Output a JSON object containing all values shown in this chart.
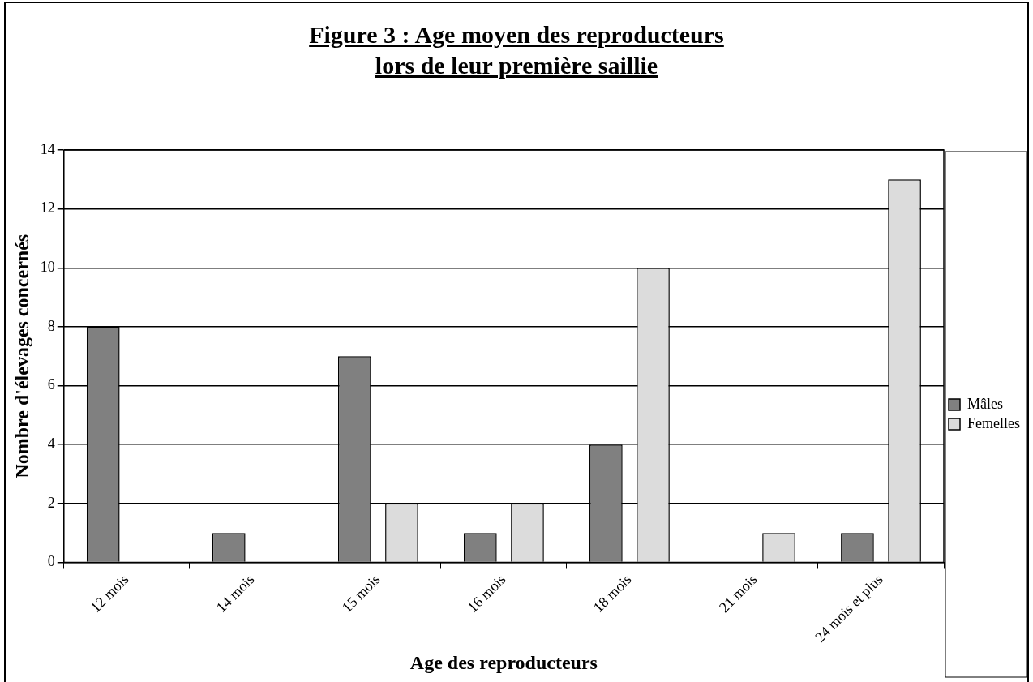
{
  "chart_data": {
    "type": "bar",
    "title": "Figure 3 : Age moyen des reproducteurs\nlors de leur première saillie",
    "xlabel": "Age des reproducteurs",
    "ylabel": "Nombre d'élevages concernés",
    "categories": [
      "12 mois",
      "14 mois",
      "15 mois",
      "16 mois",
      "18 mois",
      "21 mois",
      "24 mois et plus"
    ],
    "series": [
      {
        "name": "Mâles",
        "color": "#808080",
        "values": [
          8,
          1,
          7,
          1,
          4,
          0,
          1
        ]
      },
      {
        "name": "Femelles",
        "color": "#dcdcdc",
        "values": [
          0,
          0,
          2,
          2,
          10,
          1,
          13
        ]
      }
    ],
    "ylim": [
      0,
      14
    ],
    "yticks": [
      0,
      2,
      4,
      6,
      8,
      10,
      12,
      14
    ],
    "grid": "y",
    "legend": "right"
  }
}
